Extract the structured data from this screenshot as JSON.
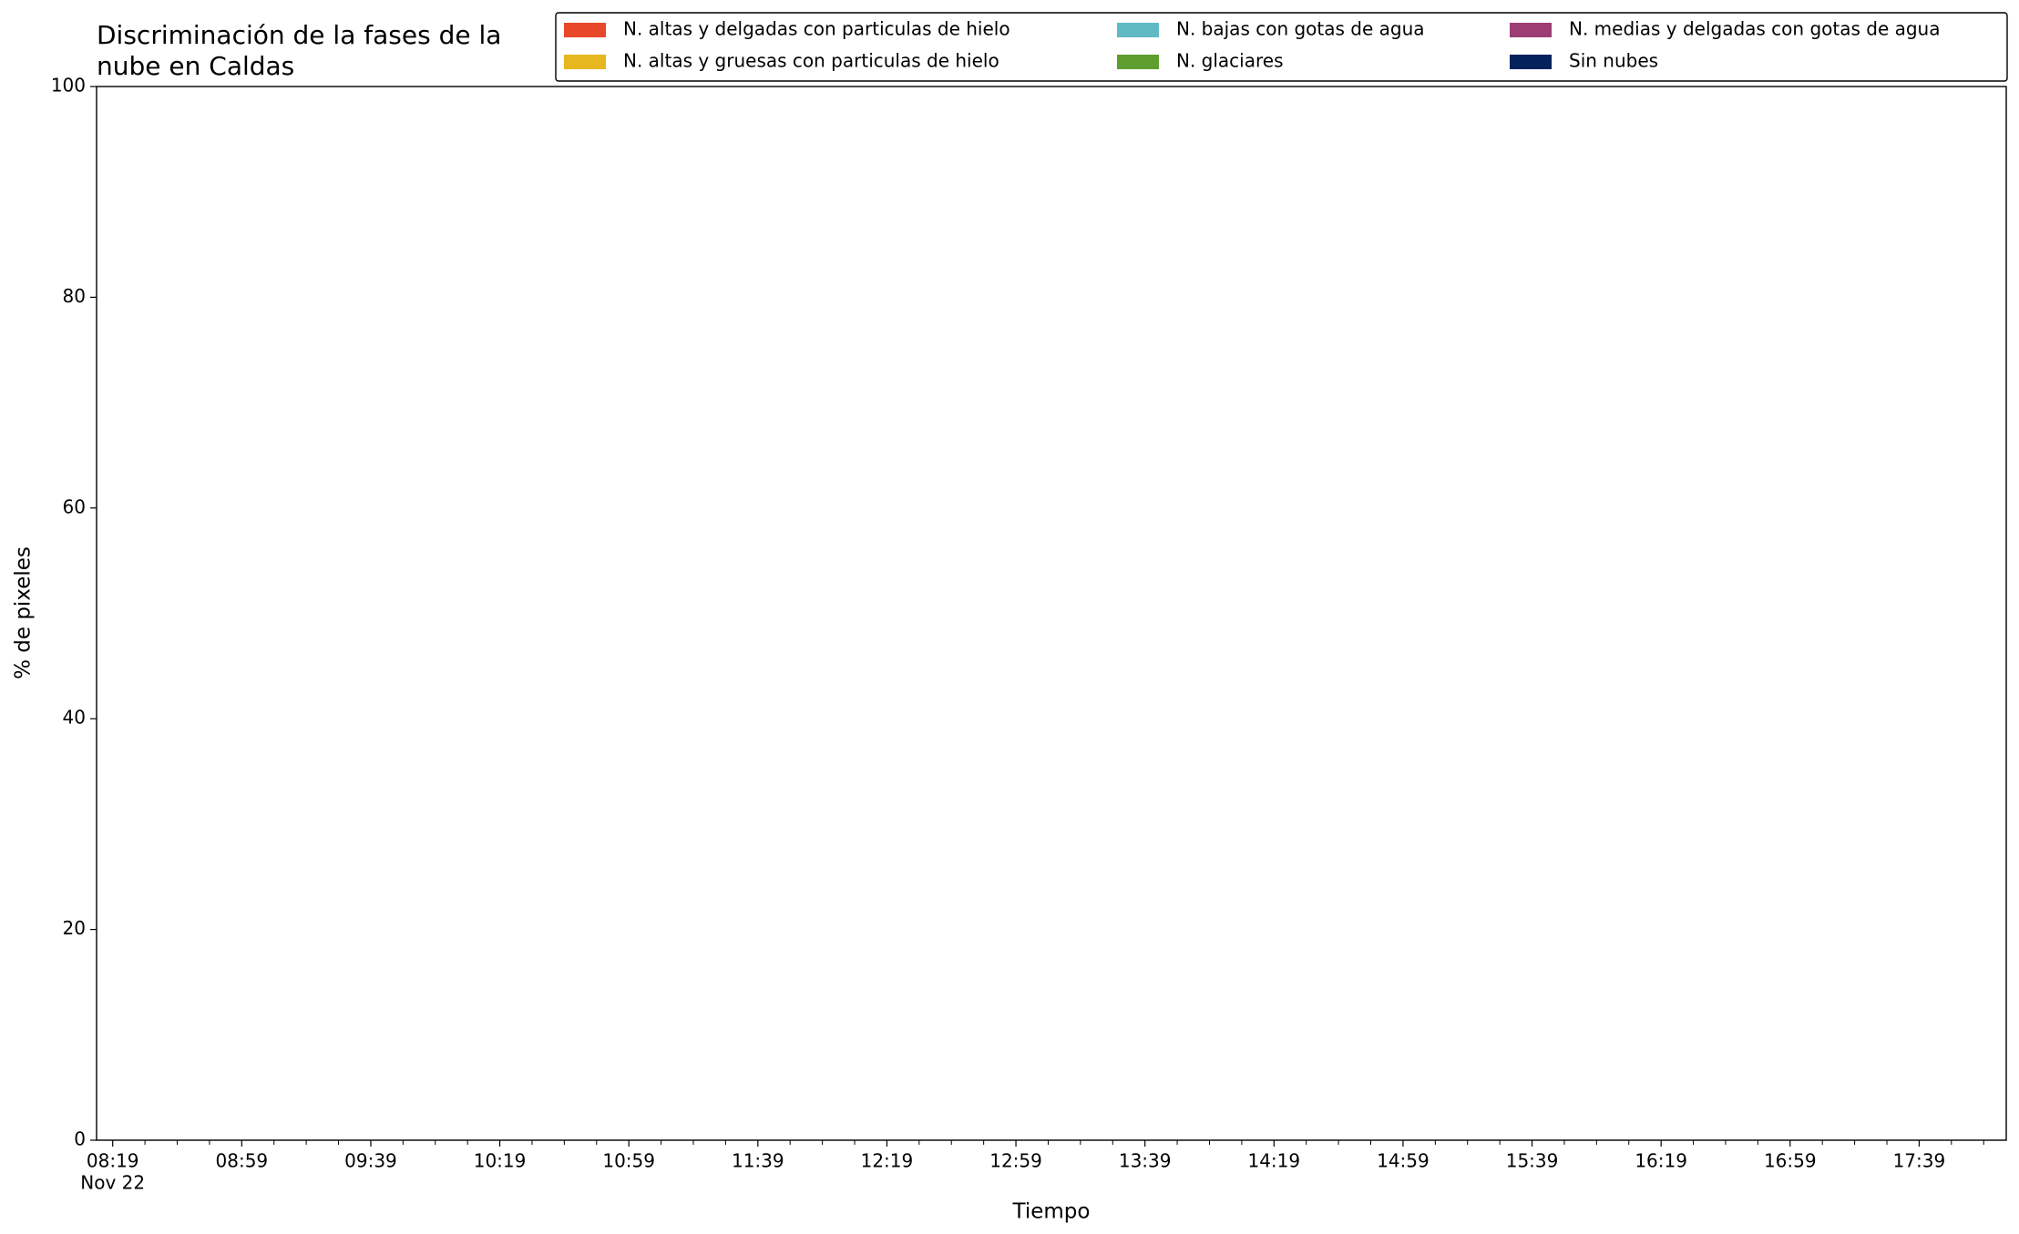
{
  "chart_data": {
    "type": "stacked_area",
    "title": "Discriminación de la fases de la\nnube en Caldas",
    "xlabel": "Tiempo",
    "ylabel": "% de pixeles",
    "x": [],
    "series": [
      {
        "name": "N. altas y delgadas con particulas de hielo",
        "color": "#e8472a",
        "values": []
      },
      {
        "name": "N. altas y gruesas con particulas de hielo",
        "color": "#e6b71e",
        "values": []
      },
      {
        "name": "N. bajas con gotas de agua",
        "color": "#5fbac4",
        "values": []
      },
      {
        "name": "N. glaciares",
        "color": "#5e9e2f",
        "values": []
      },
      {
        "name": "N. medias y delgadas con gotas de agua",
        "color": "#9c3e73",
        "values": []
      },
      {
        "name": "Sin nubes",
        "color": "#03215b",
        "values": []
      }
    ],
    "ylim": [
      0,
      100
    ],
    "yticks": [
      0,
      20,
      40,
      60,
      80,
      100
    ],
    "xlim": [
      "08:14",
      "18:06"
    ],
    "xticks": [
      {
        "value": "08:19",
        "label": "08:19",
        "sublabel": "Nov 22"
      },
      {
        "value": "08:59",
        "label": "08:59"
      },
      {
        "value": "09:39",
        "label": "09:39"
      },
      {
        "value": "10:19",
        "label": "10:19"
      },
      {
        "value": "10:59",
        "label": "10:59"
      },
      {
        "value": "11:39",
        "label": "11:39"
      },
      {
        "value": "12:19",
        "label": "12:19"
      },
      {
        "value": "12:59",
        "label": "12:59"
      },
      {
        "value": "13:39",
        "label": "13:39"
      },
      {
        "value": "14:19",
        "label": "14:19"
      },
      {
        "value": "14:59",
        "label": "14:59"
      },
      {
        "value": "15:39",
        "label": "15:39"
      },
      {
        "value": "16:19",
        "label": "16:19"
      },
      {
        "value": "16:59",
        "label": "16:59"
      },
      {
        "value": "17:39",
        "label": "17:39"
      }
    ],
    "xminorticks": [
      "08:29",
      "08:39",
      "08:49",
      "09:09",
      "09:19",
      "09:29",
      "09:49",
      "09:59",
      "10:09",
      "10:29",
      "10:39",
      "10:49",
      "11:09",
      "11:19",
      "11:29",
      "11:49",
      "11:59",
      "12:09",
      "12:29",
      "12:39",
      "12:49",
      "13:09",
      "13:19",
      "13:29",
      "13:49",
      "13:59",
      "14:09",
      "14:29",
      "14:39",
      "14:49",
      "15:09",
      "15:19",
      "15:29",
      "15:49",
      "15:59",
      "16:09",
      "16:29",
      "16:39",
      "16:49",
      "17:09",
      "17:19",
      "17:29",
      "17:49",
      "17:59"
    ],
    "legend": "upper right",
    "grid": false
  }
}
